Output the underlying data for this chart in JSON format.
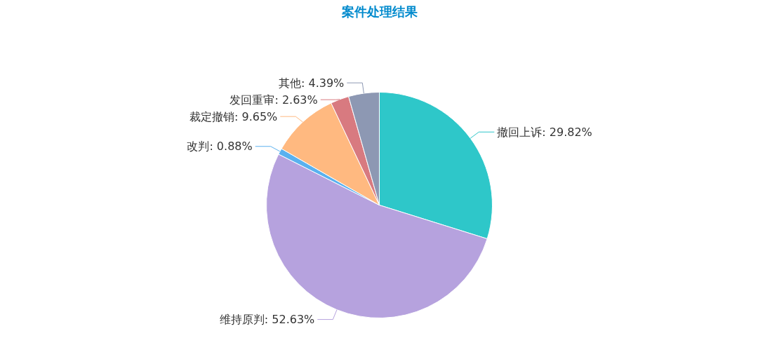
{
  "chart_data": {
    "type": "pie",
    "title": "案件处理结果",
    "categories": [
      "撤回上诉",
      "维持原判",
      "改判",
      "裁定撤销",
      "发回重审",
      "其他"
    ],
    "values": [
      29.82,
      52.63,
      0.88,
      9.65,
      2.63,
      4.39
    ],
    "value_labels": [
      "29.82%",
      "52.63%",
      "0.88%",
      "9.65%",
      "2.63%",
      "4.39%"
    ],
    "colors": [
      "#2ec7c9",
      "#b6a2de",
      "#5ab1ef",
      "#ffb980",
      "#d87a80",
      "#8d98b3"
    ],
    "legend": false
  }
}
